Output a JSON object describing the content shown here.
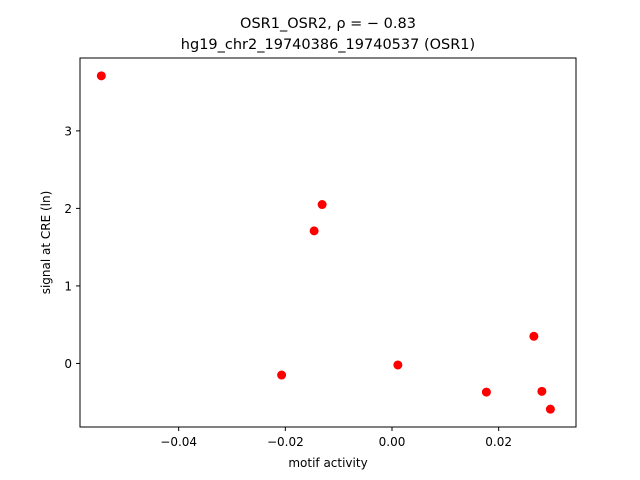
{
  "chart_data": {
    "type": "scatter",
    "title_line1": "OSR1_OSR2, ρ = − 0.83",
    "title_line2": "hg19_chr2_19740386_19740537 (OSR1)",
    "xlabel": "motif activity",
    "ylabel": "signal at CRE (ln)",
    "xlim": [
      -0.0585,
      0.0345
    ],
    "ylim": [
      -0.82,
      3.94
    ],
    "xticks": [
      -0.04,
      -0.02,
      0.0,
      0.02
    ],
    "xtick_labels": [
      "−0.04",
      "−0.02",
      "0.00",
      "0.02"
    ],
    "yticks": [
      0,
      1,
      2,
      3
    ],
    "ytick_labels": [
      "0",
      "1",
      "2",
      "3"
    ],
    "grid": false,
    "marker_color": "#ff0000",
    "points": [
      {
        "x": -0.0545,
        "y": 3.71
      },
      {
        "x": -0.0131,
        "y": 2.05
      },
      {
        "x": -0.0146,
        "y": 1.71
      },
      {
        "x": -0.0207,
        "y": -0.15
      },
      {
        "x": 0.0011,
        "y": -0.02
      },
      {
        "x": 0.0177,
        "y": -0.37
      },
      {
        "x": 0.0266,
        "y": 0.35
      },
      {
        "x": 0.0281,
        "y": -0.36
      },
      {
        "x": 0.0297,
        "y": -0.59
      }
    ]
  }
}
